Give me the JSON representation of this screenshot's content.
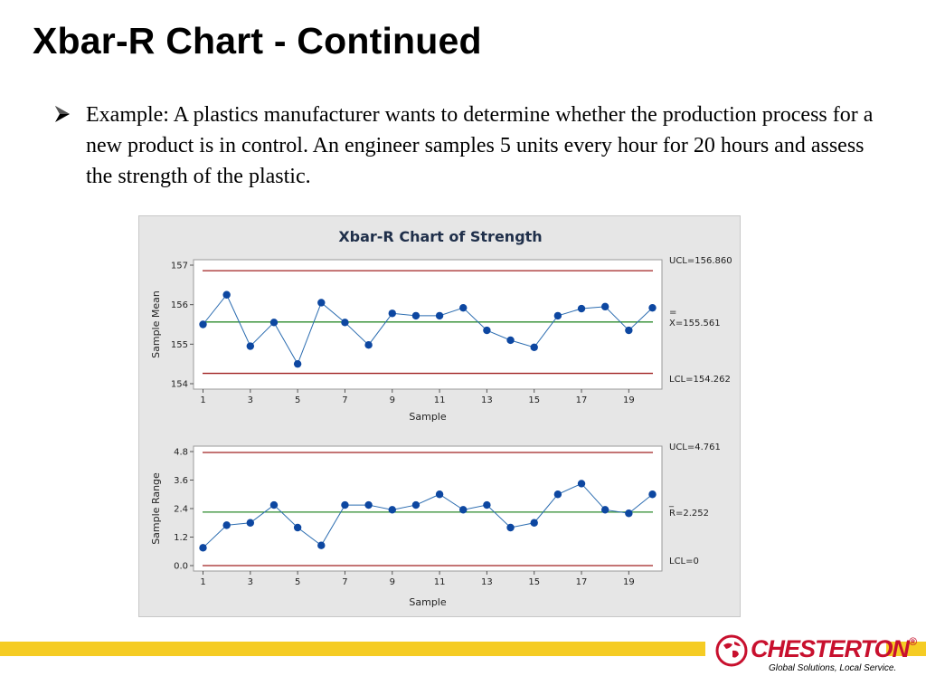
{
  "slide": {
    "title": "Xbar-R Chart - Continued",
    "bullet": "Example:  A plastics manufacturer wants to determine whether the production process for a new product is in control.  An engineer samples 5 units every hour for 20 hours and assess the strength of the plastic."
  },
  "chart_data": [
    {
      "type": "line",
      "title": "Xbar-R Chart of Strength",
      "xlabel": "Sample",
      "ylabel": "Sample Mean",
      "x": [
        1,
        2,
        3,
        4,
        5,
        6,
        7,
        8,
        9,
        10,
        11,
        12,
        13,
        14,
        15,
        16,
        17,
        18,
        19,
        20
      ],
      "values": [
        155.5,
        156.25,
        154.95,
        155.55,
        154.5,
        156.05,
        155.55,
        154.98,
        155.78,
        155.72,
        155.72,
        155.92,
        155.35,
        155.1,
        154.92,
        155.72,
        155.9,
        155.95,
        155.35,
        155.92
      ],
      "ylim": [
        154,
        157
      ],
      "yticks": [
        "154",
        "155",
        "156",
        "157"
      ],
      "xticks": [
        "1",
        "3",
        "5",
        "7",
        "9",
        "11",
        "13",
        "15",
        "17",
        "19"
      ],
      "ucl": 156.86,
      "center": 155.561,
      "lcl": 154.262,
      "ucl_label": "UCL=156.860",
      "center_label": "X=155.561",
      "center_label_bar": "=",
      "lcl_label": "LCL=154.262",
      "grid": false,
      "colors": {
        "series": "#2b6cb0",
        "marker": "#0d47a1",
        "center": "#2e8b2e",
        "limits": "#a02020"
      }
    },
    {
      "type": "line",
      "xlabel": "Sample",
      "ylabel": "Sample Range",
      "x": [
        1,
        2,
        3,
        4,
        5,
        6,
        7,
        8,
        9,
        10,
        11,
        12,
        13,
        14,
        15,
        16,
        17,
        18,
        19,
        20
      ],
      "values": [
        0.75,
        1.7,
        1.8,
        2.55,
        1.6,
        0.85,
        2.55,
        2.55,
        2.35,
        2.55,
        3.0,
        2.35,
        2.55,
        1.6,
        1.8,
        3.0,
        3.45,
        2.35,
        2.2,
        3.0
      ],
      "ylim": [
        0,
        4.8
      ],
      "yticks": [
        "0.0",
        "1.2",
        "2.4",
        "3.6",
        "4.8"
      ],
      "xticks": [
        "1",
        "3",
        "5",
        "7",
        "9",
        "11",
        "13",
        "15",
        "17",
        "19"
      ],
      "ucl": 4.761,
      "center": 2.252,
      "lcl": 0,
      "ucl_label": "UCL=4.761",
      "center_label": "R=2.252",
      "center_label_bar": "_",
      "lcl_label": "LCL=0",
      "grid": false,
      "colors": {
        "series": "#2b6cb0",
        "marker": "#0d47a1",
        "center": "#2e8b2e",
        "limits": "#a02020"
      }
    }
  ],
  "logo": {
    "wordmark": "CHESTERTON",
    "registered": "®",
    "tagline": "Global Solutions, Local Service."
  },
  "colors": {
    "footer_bar": "#f5cc24",
    "logo_red": "#c8102e"
  },
  "icons": {
    "bullet": "arrow-bullet-icon",
    "logo": "globe-logo-icon"
  }
}
